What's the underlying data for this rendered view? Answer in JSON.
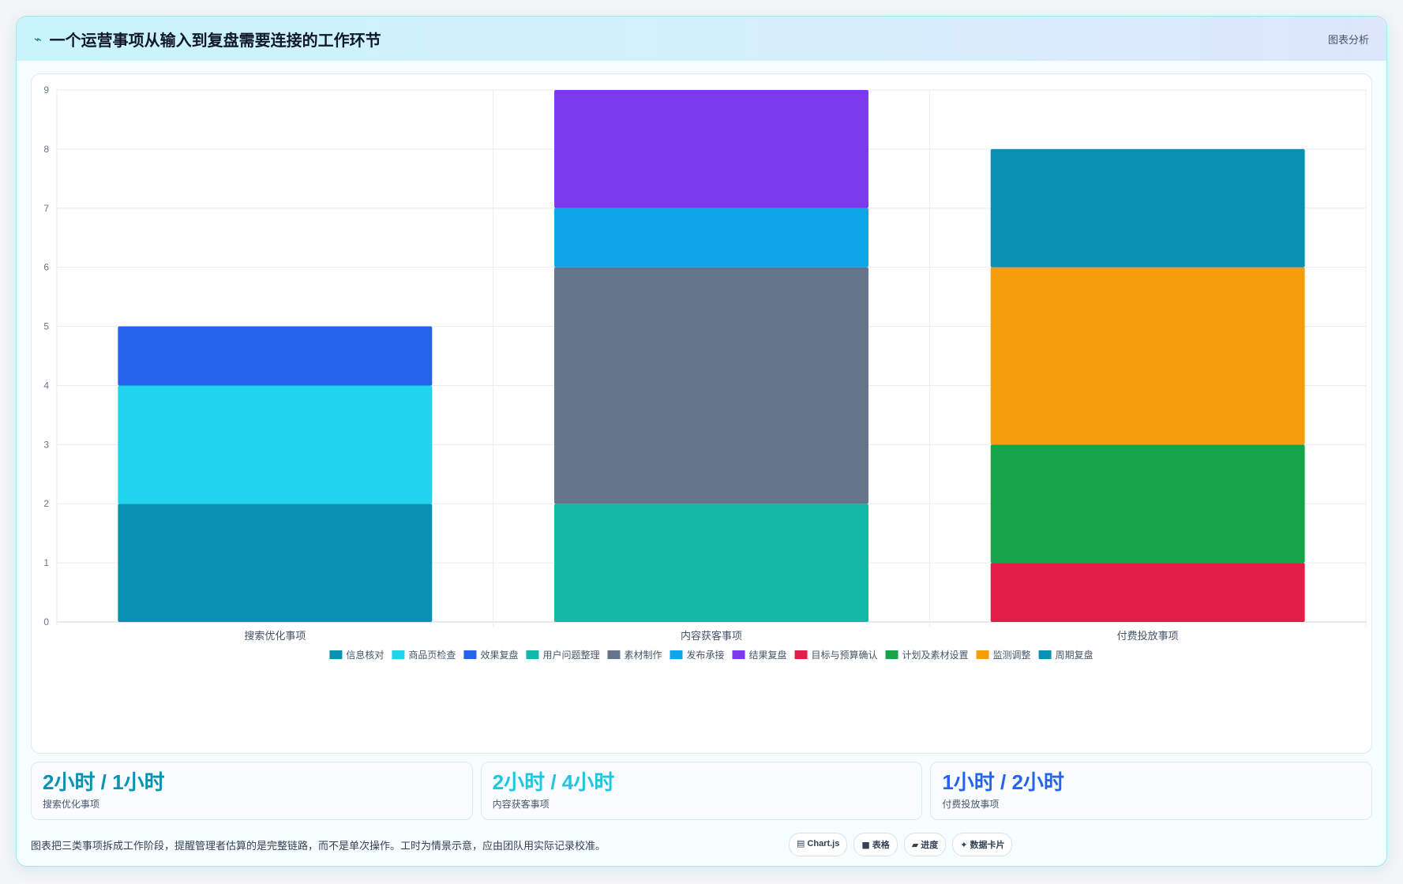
{
  "header": {
    "title": "一个运营事项从输入到复盘需要连接的工作环节",
    "action": "图表分析"
  },
  "chart_data": {
    "type": "bar",
    "stacked": true,
    "categories": [
      "搜索优化事项",
      "内容获客事项",
      "付费投放事项"
    ],
    "ylim": [
      0,
      9
    ],
    "yticks": [
      0,
      1,
      2,
      3,
      4,
      5,
      6,
      7,
      8,
      9
    ],
    "grid": true,
    "legend": "bottom",
    "series": [
      {
        "name": "信息核对",
        "color": "#0891b2",
        "values": [
          2,
          0,
          0
        ]
      },
      {
        "name": "商品页检查",
        "color": "#22d3ee",
        "values": [
          2,
          0,
          0
        ]
      },
      {
        "name": "效果复盘",
        "color": "#2563eb",
        "values": [
          1,
          0,
          0
        ]
      },
      {
        "name": "用户问题整理",
        "color": "#14b8a6",
        "values": [
          0,
          2,
          0
        ]
      },
      {
        "name": "素材制作",
        "color": "#64748b",
        "values": [
          0,
          4,
          0
        ]
      },
      {
        "name": "发布承接",
        "color": "#0ea5e9",
        "values": [
          0,
          1,
          0
        ]
      },
      {
        "name": "结果复盘",
        "color": "#7c3aed",
        "values": [
          0,
          2,
          0
        ]
      },
      {
        "name": "目标与预算确认",
        "color": "#e11d48",
        "values": [
          0,
          0,
          1
        ]
      },
      {
        "name": "计划及素材设置",
        "color": "#16a34a",
        "values": [
          0,
          0,
          2
        ]
      },
      {
        "name": "监测调整",
        "color": "#f59e0b",
        "values": [
          0,
          0,
          3
        ]
      },
      {
        "name": "周期复盘",
        "color": "#0891b2",
        "values": [
          0,
          0,
          2
        ]
      }
    ]
  },
  "stats": [
    {
      "value": "2小时 / 1小时",
      "label": "搜索优化事项",
      "color": "#0891b2"
    },
    {
      "value": "2小时 / 4小时",
      "label": "内容获客事项",
      "color": "#22c5e0"
    },
    {
      "value": "1小时 / 2小时",
      "label": "付费投放事项",
      "color": "#2563eb"
    }
  ],
  "footer": {
    "note": "图表把三类事项拆成工作阶段，提醒管理者估算的是完整链路，而不是单次操作。工时为情景示意，应由团队用实际记录校准。",
    "chips": [
      {
        "icon": "▤",
        "label": "Chart.js"
      },
      {
        "icon": "■",
        "label": "表格"
      },
      {
        "icon": "▰",
        "label": "进度"
      },
      {
        "icon": "✦",
        "label": "数据卡片"
      }
    ]
  }
}
